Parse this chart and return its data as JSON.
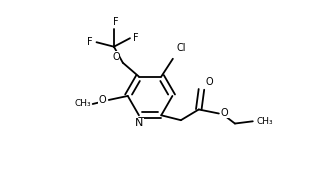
{
  "bg_color": "#ffffff",
  "line_color": "#000000",
  "lw": 1.3,
  "fs": 7.0,
  "fig_w": 3.22,
  "fig_h": 1.78,
  "dpi": 100,
  "xlim": [
    0,
    3.22
  ],
  "ylim": [
    0,
    1.78
  ]
}
